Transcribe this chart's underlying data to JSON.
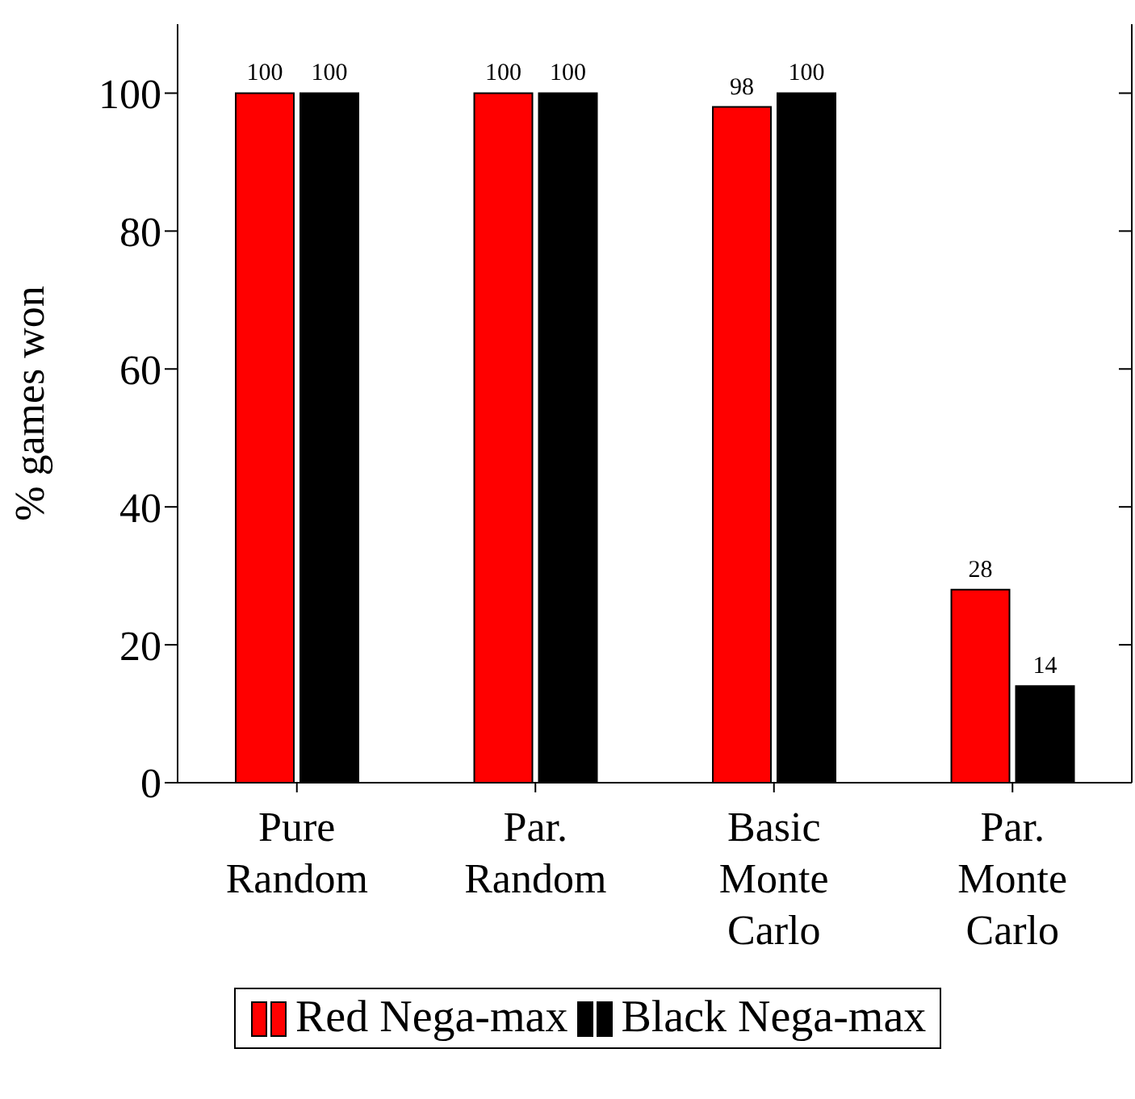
{
  "chart_data": {
    "type": "bar",
    "ylabel": "% games won",
    "categories": [
      "Pure Random",
      "Par. Random",
      "Basic Monte Carlo",
      "Par. Monte Carlo"
    ],
    "series": [
      {
        "name": "Red Nega-max",
        "color": "#ff0000",
        "values": [
          100,
          100,
          98,
          28
        ]
      },
      {
        "name": "Black Nega-max",
        "color": "#000000",
        "values": [
          100,
          100,
          100,
          14
        ]
      }
    ],
    "ylim": [
      0,
      110
    ],
    "yticks": [
      0,
      20,
      40,
      60,
      80,
      100
    ],
    "data_labels": true,
    "grid": false,
    "legend": "bottom"
  }
}
